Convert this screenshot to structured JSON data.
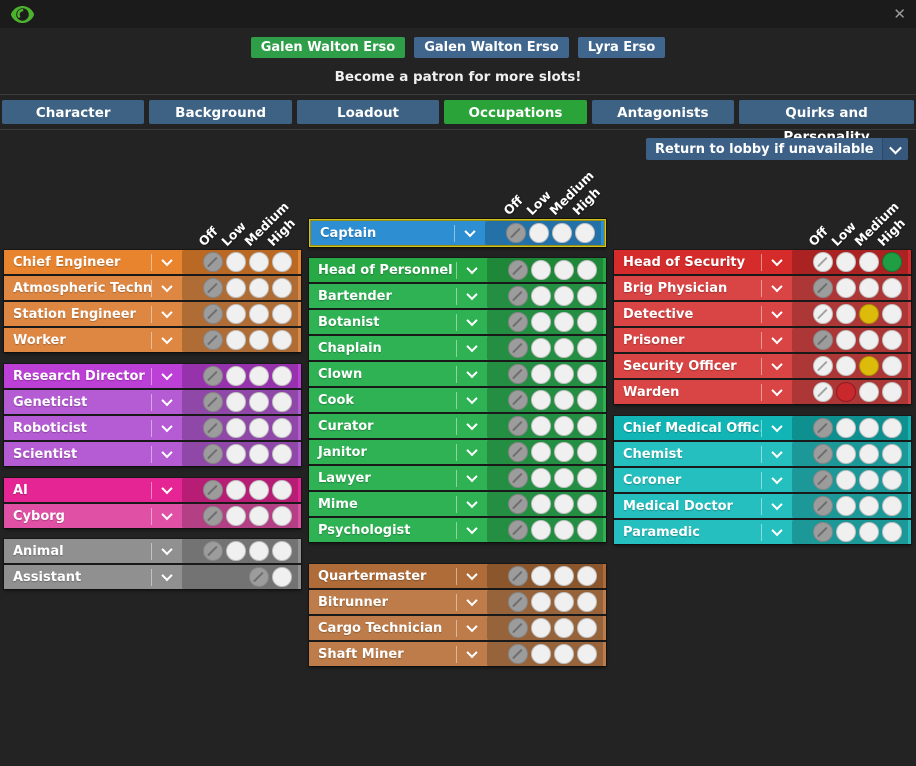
{
  "titlebar": {
    "close_label": "✕"
  },
  "slots": {
    "items": [
      {
        "label": "Galen Walton Erso",
        "active": true
      },
      {
        "label": "Galen Walton Erso",
        "active": false
      },
      {
        "label": "Lyra Erso",
        "active": false
      }
    ],
    "patron_note": "Become a patron for more slots!"
  },
  "tabs": {
    "items": [
      {
        "label": "Character",
        "active": false
      },
      {
        "label": "Background",
        "active": false
      },
      {
        "label": "Loadout",
        "active": false
      },
      {
        "label": "Occupations",
        "active": true
      },
      {
        "label": "Antagonists",
        "active": false
      },
      {
        "label": "Quirks and Personality",
        "active": false
      }
    ]
  },
  "dropdown": {
    "label": "Return to lobby if unavailable"
  },
  "priority_headers": [
    "Off",
    "Low",
    "Medium",
    "High"
  ],
  "colors": {
    "slot_active": "#2f9e49",
    "slot_inactive": "#40668d",
    "tab": "#3e6284",
    "tab_active": "#2aa338",
    "selected_low": "#c9282c",
    "selected_medium": "#ddbb0b",
    "selected_high": "#1f9e44",
    "selected_off": "#9c9c9c",
    "captain_outline": "#d2c41f"
  },
  "columns": [
    {
      "name": "left",
      "sections": [
        {
          "id": "engineering",
          "head_color": "#e8842e",
          "row_color": "#dd8743",
          "jobs": [
            {
              "name": "Chief Engineer",
              "bold": true,
              "priority": "off"
            },
            {
              "name": "Atmospheric Technici...",
              "bold": false,
              "priority": "off"
            },
            {
              "name": "Station Engineer",
              "bold": false,
              "priority": "off"
            },
            {
              "name": "Worker",
              "bold": false,
              "priority": "off"
            }
          ]
        },
        {
          "id": "science",
          "head_color": "#bc3fd6",
          "row_color": "#b55bd3",
          "jobs": [
            {
              "name": "Research Director",
              "bold": true,
              "priority": "off"
            },
            {
              "name": "Geneticist",
              "bold": false,
              "priority": "off"
            },
            {
              "name": "Roboticist",
              "bold": false,
              "priority": "off"
            },
            {
              "name": "Scientist",
              "bold": false,
              "priority": "off"
            }
          ]
        },
        {
          "id": "silicon",
          "head_color": "#e52593",
          "row_color": "#e050a5",
          "jobs": [
            {
              "name": "AI",
              "bold": true,
              "priority": "off"
            },
            {
              "name": "Cyborg",
              "bold": false,
              "priority": "off"
            }
          ]
        },
        {
          "id": "misc",
          "head_color": "#8d8d8d",
          "row_color": "#909090",
          "gap_before": 11,
          "jobs": [
            {
              "name": "Animal",
              "bold": false,
              "priority": "off"
            },
            {
              "name": "Assistant",
              "bold": false,
              "priority": "off",
              "options": [
                "off",
                "high"
              ]
            }
          ]
        }
      ]
    },
    {
      "name": "middle",
      "sections": [
        {
          "id": "command",
          "highlight": true,
          "head_color": "#2e8ed2",
          "row_color": "#2e8ed2",
          "jobs": [
            {
              "name": "Captain",
              "bold": true,
              "priority": "off"
            }
          ]
        },
        {
          "id": "service",
          "head_color": "#27a946",
          "row_color": "#2eb254",
          "gap_before": 11,
          "jobs": [
            {
              "name": "Head of Personnel",
              "bold": true,
              "priority": "off"
            },
            {
              "name": "Bartender",
              "bold": false,
              "priority": "off"
            },
            {
              "name": "Botanist",
              "bold": false,
              "priority": "off"
            },
            {
              "name": "Chaplain",
              "bold": false,
              "priority": "off"
            },
            {
              "name": "Clown",
              "bold": false,
              "priority": "off"
            },
            {
              "name": "Cook",
              "bold": false,
              "priority": "off"
            },
            {
              "name": "Curator",
              "bold": false,
              "priority": "off"
            },
            {
              "name": "Janitor",
              "bold": false,
              "priority": "off"
            },
            {
              "name": "Lawyer",
              "bold": false,
              "priority": "off"
            },
            {
              "name": "Mime",
              "bold": false,
              "priority": "off"
            },
            {
              "name": "Psychologist",
              "bold": false,
              "priority": "off"
            }
          ]
        },
        {
          "id": "cargo",
          "head_color": "#b06c38",
          "row_color": "#bd7c49",
          "gap_before": 22,
          "jobs": [
            {
              "name": "Quartermaster",
              "bold": true,
              "priority": "off"
            },
            {
              "name": "Bitrunner",
              "bold": false,
              "priority": "off"
            },
            {
              "name": "Cargo Technician",
              "bold": false,
              "priority": "off"
            },
            {
              "name": "Shaft Miner",
              "bold": false,
              "priority": "off"
            }
          ]
        }
      ]
    },
    {
      "name": "right",
      "sections": [
        {
          "id": "security",
          "head_color": "#d62b2b",
          "row_color": "#d94444",
          "jobs": [
            {
              "name": "Head of Security",
              "bold": true,
              "priority": "high"
            },
            {
              "name": "Brig Physician",
              "bold": false,
              "priority": "off"
            },
            {
              "name": "Detective",
              "bold": false,
              "priority": "medium"
            },
            {
              "name": "Prisoner",
              "bold": false,
              "priority": "off"
            },
            {
              "name": "Security Officer",
              "bold": false,
              "priority": "medium"
            },
            {
              "name": "Warden",
              "bold": false,
              "priority": "low"
            }
          ]
        },
        {
          "id": "medical",
          "head_color": "#12b5b5",
          "row_color": "#25bfbf",
          "jobs": [
            {
              "name": "Chief Medical Offic...",
              "bold": true,
              "priority": "off"
            },
            {
              "name": "Chemist",
              "bold": false,
              "priority": "off"
            },
            {
              "name": "Coroner",
              "bold": false,
              "priority": "off"
            },
            {
              "name": "Medical Doctor",
              "bold": false,
              "priority": "off"
            },
            {
              "name": "Paramedic",
              "bold": false,
              "priority": "off"
            }
          ]
        }
      ]
    }
  ]
}
